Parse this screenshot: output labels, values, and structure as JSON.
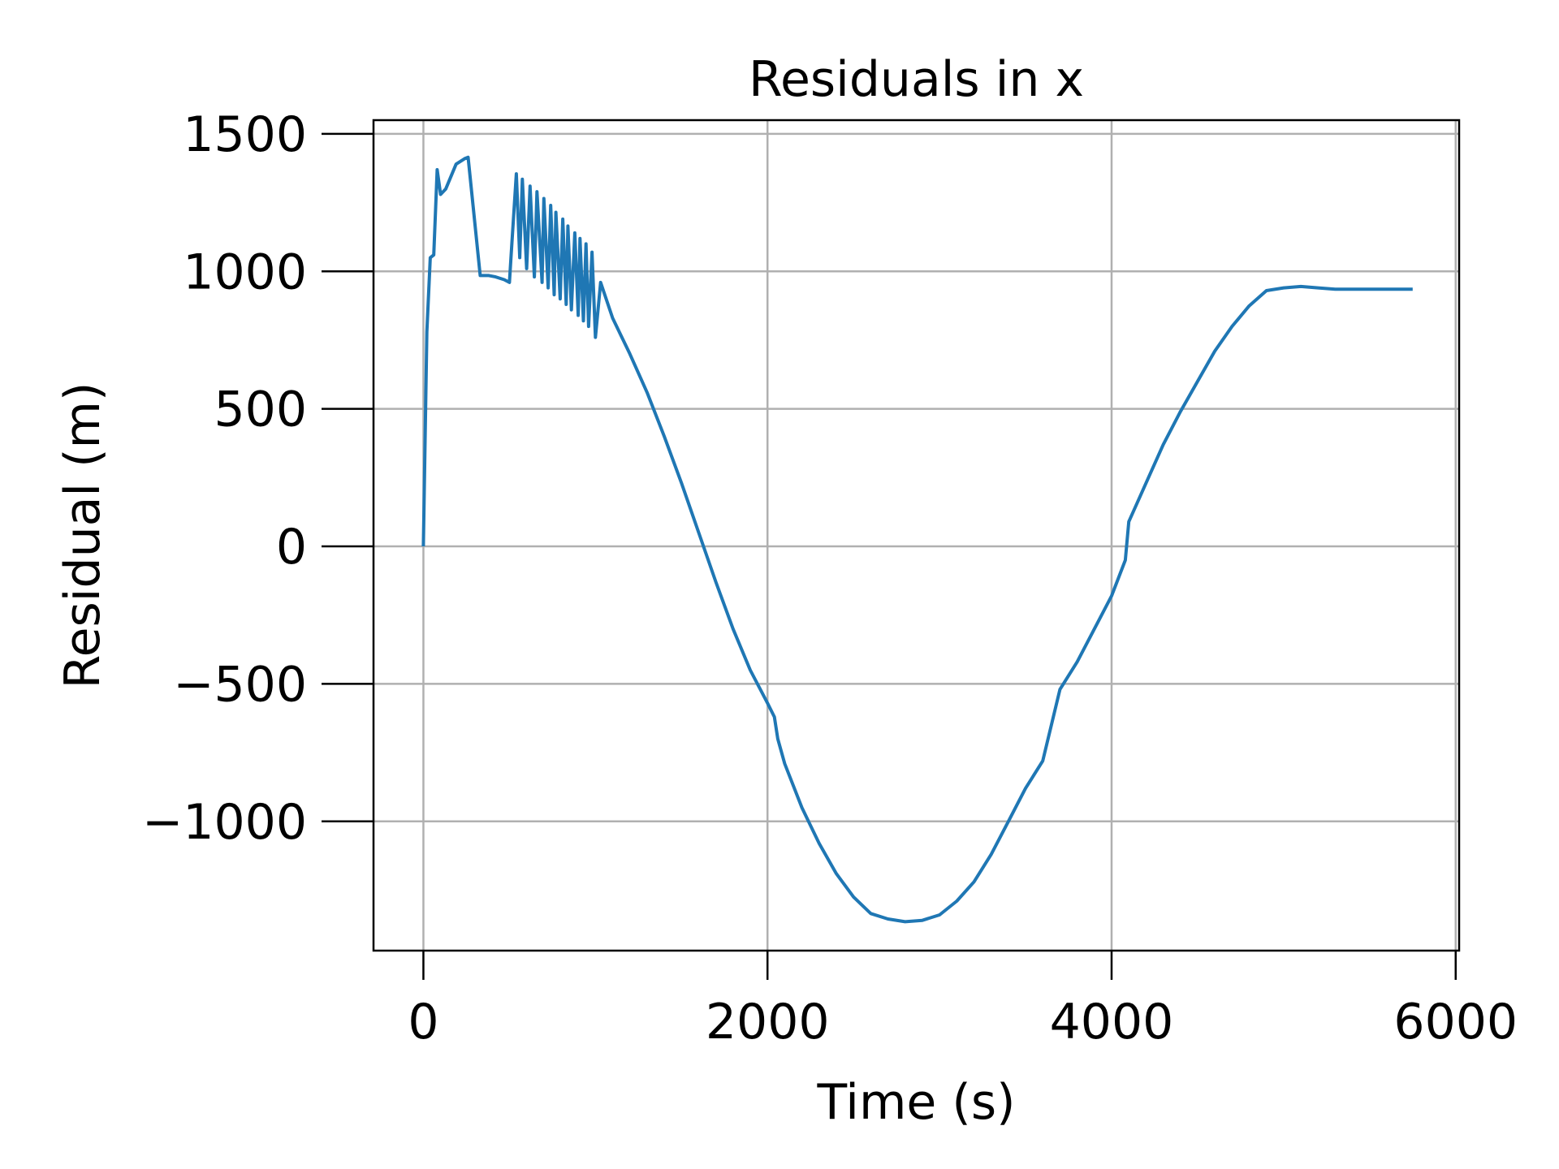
{
  "chart_data": {
    "type": "line",
    "title": "Residuals in x",
    "xlabel": "Time (s)",
    "ylabel": "Residual (m)",
    "xlim": [
      -290,
      6020
    ],
    "ylim": [
      -1470,
      1550
    ],
    "xticks": [
      0,
      2000,
      4000,
      6000
    ],
    "xtick_labels": [
      "0",
      "2000",
      "4000",
      "6000"
    ],
    "yticks": [
      -1000,
      -500,
      0,
      500,
      1000,
      1500
    ],
    "ytick_labels": [
      "−1000",
      "−500",
      "0",
      "500",
      "1000",
      "1500"
    ],
    "grid": true,
    "legend": "none",
    "series": [
      {
        "color": "#1f77b4",
        "x": [
          0,
          20,
          40,
          60,
          80,
          100,
          130,
          190,
          240,
          260,
          330,
          380,
          420,
          470,
          500,
          510,
          540,
          560,
          575,
          600,
          620,
          645,
          660,
          690,
          700,
          725,
          740,
          760,
          770,
          795,
          810,
          830,
          840,
          860,
          880,
          900,
          910,
          930,
          945,
          960,
          980,
          1000,
          1030,
          1100,
          1200,
          1300,
          1400,
          1500,
          1600,
          1700,
          1800,
          1900,
          2000,
          2040,
          2060,
          2100,
          2200,
          2300,
          2400,
          2500,
          2600,
          2700,
          2800,
          2900,
          3000,
          3100,
          3200,
          3300,
          3400,
          3500,
          3600,
          3700,
          3800,
          3900,
          4000,
          4080,
          4100,
          4200,
          4300,
          4400,
          4500,
          4600,
          4700,
          4800,
          4900,
          5000,
          5100,
          5200,
          5300,
          5400,
          5500,
          5600,
          5700,
          5750
        ],
        "y": [
          0,
          780,
          1050,
          1060,
          1370,
          1280,
          1300,
          1390,
          1410,
          1415,
          985,
          985,
          980,
          970,
          960,
          1060,
          1355,
          1050,
          1335,
          1010,
          1310,
          980,
          1290,
          960,
          1265,
          940,
          1240,
          915,
          1215,
          900,
          1190,
          880,
          1165,
          860,
          1140,
          840,
          1120,
          820,
          1100,
          800,
          1070,
          760,
          960,
          830,
          700,
          560,
          400,
          230,
          50,
          -130,
          -300,
          -450,
          -570,
          -620,
          -700,
          -790,
          -950,
          -1080,
          -1190,
          -1275,
          -1335,
          -1355,
          -1365,
          -1360,
          -1340,
          -1290,
          -1220,
          -1120,
          -1000,
          -880,
          -780,
          -520,
          -420,
          -300,
          -180,
          -50,
          90,
          230,
          370,
          490,
          600,
          710,
          800,
          875,
          930,
          940,
          945,
          940,
          935,
          935,
          935,
          935,
          935,
          935
        ]
      }
    ]
  }
}
